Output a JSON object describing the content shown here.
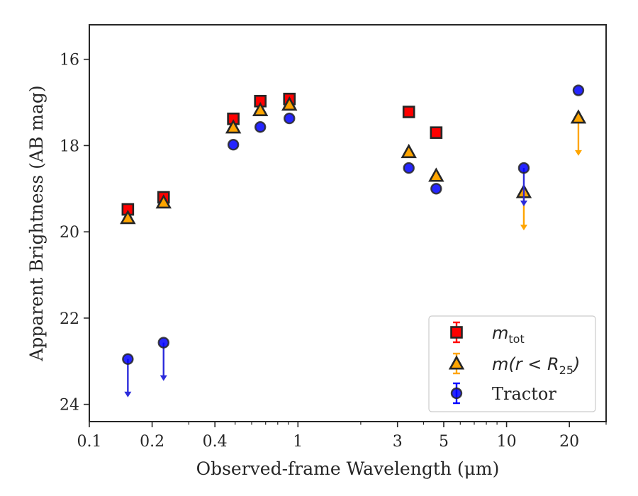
{
  "chart_data": {
    "type": "scatter",
    "xlabel": "Observed-frame Wavelength (μm)",
    "ylabel": "Apparent Brightness (AB mag)",
    "xscale": "log",
    "xlim": [
      0.1,
      30
    ],
    "ylim": [
      24.4,
      15.2
    ],
    "y_inverted": true,
    "x_ticks": [
      {
        "value": 0.1,
        "label": "0.1"
      },
      {
        "value": 0.2,
        "label": "0.2"
      },
      {
        "value": 0.4,
        "label": "0.4"
      },
      {
        "value": 1,
        "label": "1"
      },
      {
        "value": 3,
        "label": "3"
      },
      {
        "value": 5,
        "label": "5"
      },
      {
        "value": 10,
        "label": "10"
      },
      {
        "value": 20,
        "label": "20"
      }
    ],
    "x_minor_ticks": [
      0.3,
      0.5,
      0.6,
      0.7,
      0.8,
      0.9,
      2,
      4,
      6,
      7,
      8,
      9,
      30
    ],
    "y_ticks": [
      {
        "value": 16,
        "label": "16"
      },
      {
        "value": 18,
        "label": "18"
      },
      {
        "value": 20,
        "label": "20"
      },
      {
        "value": 22,
        "label": "22"
      },
      {
        "value": 24,
        "label": "24"
      }
    ],
    "legend_position": "lower-right",
    "series": [
      {
        "name": "m_tot",
        "marker": "square",
        "color": "#ff0000",
        "edge_color": "#262626",
        "points": [
          {
            "x": 0.153,
            "y": 19.48
          },
          {
            "x": 0.227,
            "y": 19.2
          },
          {
            "x": 0.49,
            "y": 17.38
          },
          {
            "x": 0.66,
            "y": 16.97
          },
          {
            "x": 0.91,
            "y": 16.92
          },
          {
            "x": 3.4,
            "y": 17.22
          },
          {
            "x": 4.6,
            "y": 17.7
          }
        ]
      },
      {
        "name": "m(r < R25)",
        "marker": "triangle",
        "color": "#ffa500",
        "edge_color": "#262626",
        "points": [
          {
            "x": 0.153,
            "y": 19.68
          },
          {
            "x": 0.227,
            "y": 19.32
          },
          {
            "x": 0.49,
            "y": 17.58
          },
          {
            "x": 0.66,
            "y": 17.18
          },
          {
            "x": 0.91,
            "y": 17.05
          },
          {
            "x": 3.4,
            "y": 18.15
          },
          {
            "x": 4.6,
            "y": 18.7
          },
          {
            "x": 12.1,
            "y": 19.08,
            "upper_limit": true
          },
          {
            "x": 22.1,
            "y": 17.35,
            "upper_limit": true
          }
        ]
      },
      {
        "name": "Tractor",
        "marker": "circle",
        "color": "#0000ff",
        "edge_color": "#262626",
        "points": [
          {
            "x": 0.153,
            "y": 22.95,
            "upper_limit": true
          },
          {
            "x": 0.227,
            "y": 22.57,
            "upper_limit": true
          },
          {
            "x": 0.49,
            "y": 17.98
          },
          {
            "x": 0.66,
            "y": 17.57
          },
          {
            "x": 0.91,
            "y": 17.37
          },
          {
            "x": 3.4,
            "y": 18.52
          },
          {
            "x": 4.6,
            "y": 19.0
          },
          {
            "x": 12.1,
            "y": 18.52,
            "upper_limit": true
          },
          {
            "x": 22.1,
            "y": 16.72
          }
        ]
      }
    ]
  },
  "legend": {
    "items": [
      {
        "base": "m",
        "sub": "tot"
      },
      {
        "text": "m(r < R",
        "sub": "25",
        "suffix": ")"
      },
      {
        "text": "Tractor"
      }
    ]
  }
}
